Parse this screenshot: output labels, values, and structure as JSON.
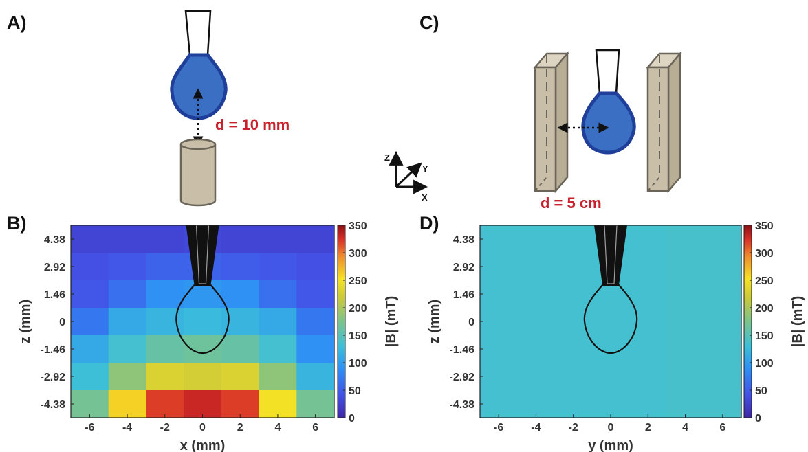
{
  "panels": {
    "A": "A)",
    "B": "B)",
    "C": "C)",
    "D": "D)"
  },
  "diagram_A": {
    "distance_label": "d = 10 mm"
  },
  "diagram_C": {
    "distance_label": "d = 5 cm"
  },
  "axes_icon": {
    "z": "Z",
    "y": "Y",
    "x": "X"
  },
  "colors": {
    "drop_fill": "#3a6fc4",
    "drop_stroke": "#1f3f9a",
    "magnet_fill": "#c9bfa8",
    "magnet_stroke": "#6b6458",
    "label_red": "#c8202c"
  },
  "colormap_name": "parula-like (blue-cyan-green-yellow-red)",
  "chart_data": [
    {
      "type": "heatmap",
      "panel": "B",
      "xlabel": "x (mm)",
      "ylabel": "z (mm)",
      "colorbar_label": "|B| (mT)",
      "x_ticks": [
        "-6",
        "-4",
        "-2",
        "0",
        "2",
        "4",
        "6"
      ],
      "x_tick_values": [
        -6,
        -4,
        -2,
        0,
        2,
        4,
        6
      ],
      "y_ticks": [
        "4.38",
        "2.92",
        "1.46",
        "0",
        "-1.46",
        "-2.92",
        "-4.38"
      ],
      "y_tick_values": [
        4.38,
        2.92,
        1.46,
        0,
        -1.46,
        -2.92,
        -4.38
      ],
      "xlim": [
        -7,
        7
      ],
      "ylim": [
        -5.11,
        5.11
      ],
      "clim": [
        0,
        350
      ],
      "colorbar_ticks": [
        "0",
        "50",
        "100",
        "150",
        "200",
        "250",
        "300",
        "350"
      ],
      "col_edges": [
        -7,
        -5,
        -3,
        -1,
        1,
        3,
        5,
        7
      ],
      "row_edges": [
        5.11,
        3.65,
        2.19,
        0.73,
        -0.73,
        -2.19,
        -3.65,
        -5.11
      ],
      "values": [
        [
          30,
          30,
          30,
          32,
          30,
          30,
          30
        ],
        [
          40,
          45,
          55,
          55,
          50,
          45,
          40
        ],
        [
          45,
          65,
          90,
          95,
          90,
          65,
          45
        ],
        [
          70,
          110,
          120,
          125,
          120,
          110,
          70
        ],
        [
          110,
          135,
          160,
          165,
          160,
          135,
          90
        ],
        [
          130,
          185,
          230,
          225,
          230,
          185,
          120
        ],
        [
          170,
          260,
          320,
          330,
          320,
          250,
          170
        ]
      ]
    },
    {
      "type": "heatmap",
      "panel": "D",
      "xlabel": "y (mm)",
      "ylabel": "z (mm)",
      "colorbar_label": "|B| (mT)",
      "x_ticks": [
        "-6",
        "-4",
        "-2",
        "0",
        "2",
        "4",
        "6"
      ],
      "x_tick_values": [
        -6,
        -4,
        -2,
        0,
        2,
        4,
        6
      ],
      "y_ticks": [
        "4.38",
        "2.92",
        "1.46",
        "0",
        "-1.46",
        "-2.92",
        "-4.38"
      ],
      "y_tick_values": [
        4.38,
        2.92,
        1.46,
        0,
        -1.46,
        -2.92,
        -4.38
      ],
      "xlim": [
        -7,
        7
      ],
      "ylim": [
        -5.11,
        5.11
      ],
      "clim": [
        0,
        350
      ],
      "colorbar_ticks": [
        "0",
        "50",
        "100",
        "150",
        "200",
        "250",
        "300",
        "350"
      ],
      "col_edges": [
        -7,
        -5,
        -3,
        -1,
        1,
        3,
        5,
        7
      ],
      "row_edges": [
        5.11,
        3.65,
        2.19,
        0.73,
        -0.73,
        -2.19,
        -3.65,
        -5.11
      ],
      "values": [
        [
          135,
          135,
          135,
          135,
          135,
          138,
          138
        ],
        [
          135,
          135,
          135,
          135,
          135,
          138,
          138
        ],
        [
          135,
          135,
          135,
          135,
          135,
          138,
          138
        ],
        [
          135,
          135,
          135,
          135,
          135,
          138,
          138
        ],
        [
          135,
          135,
          135,
          135,
          135,
          138,
          138
        ],
        [
          135,
          135,
          135,
          135,
          135,
          138,
          138
        ],
        [
          135,
          135,
          135,
          135,
          135,
          138,
          138
        ]
      ]
    }
  ]
}
